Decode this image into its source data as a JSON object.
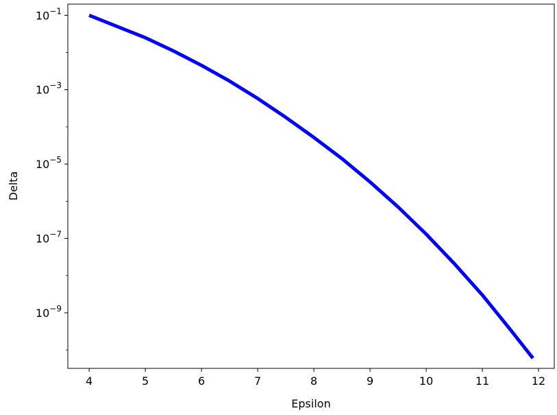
{
  "chart_data": {
    "type": "line",
    "title": "",
    "xlabel": "Epsilon",
    "ylabel": "Delta",
    "xscale": "linear",
    "yscale": "log",
    "xlim": [
      3.62,
      12.28
    ],
    "ylim": [
      3.2e-11,
      0.2
    ],
    "grid": false,
    "legend": "none",
    "x_ticks": [
      4,
      5,
      6,
      7,
      8,
      9,
      10,
      11,
      12
    ],
    "y_ticks": [
      {
        "value": 1e-09,
        "base": "10",
        "exp": "−9"
      },
      {
        "value": 1e-07,
        "base": "10",
        "exp": "−7"
      },
      {
        "value": 1e-05,
        "base": "10",
        "exp": "−5"
      },
      {
        "value": 0.001,
        "base": "10",
        "exp": "−3"
      },
      {
        "value": 0.1,
        "base": "10",
        "exp": "−1"
      }
    ],
    "series": [
      {
        "color": "#0000ff",
        "x": [
          4,
          4.5,
          5,
          5.5,
          6,
          6.5,
          7,
          7.5,
          8,
          8.5,
          9,
          9.5,
          10,
          10.5,
          11,
          11.5,
          11.9
        ],
        "y": [
          0.1,
          0.05,
          0.025,
          0.011,
          0.0045,
          0.0017,
          0.00058,
          0.00018,
          5.2e-05,
          1.4e-05,
          3.3e-06,
          7e-07,
          1.3e-07,
          2.1e-08,
          3e-09,
          3.5e-10,
          6e-11
        ]
      }
    ]
  }
}
